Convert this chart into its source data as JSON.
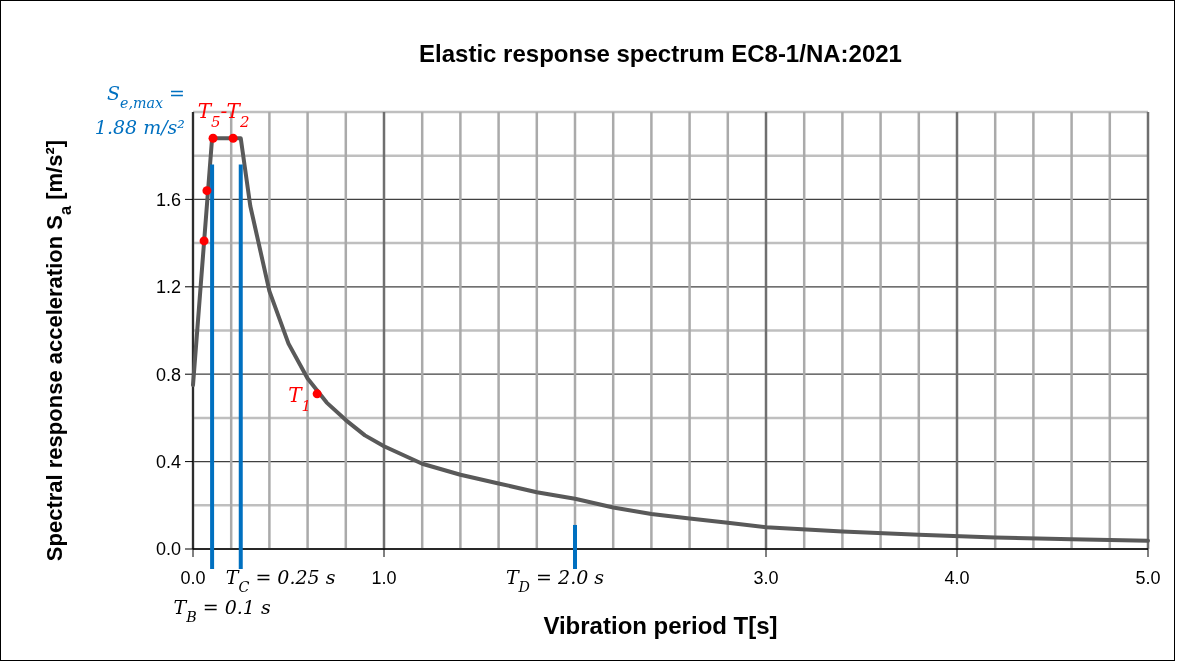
{
  "chart_data": {
    "type": "line",
    "title": "Elastic response spectrum EC8-1/NA:2021",
    "xlabel": "Vibration period T[s]",
    "ylabel": "Spectral response acceleration S$_{a}$ [m/s²]",
    "xlim": [
      0,
      5
    ],
    "ylim": [
      0,
      2
    ],
    "xticks": [
      {
        "value": 0,
        "label": "0.0"
      },
      {
        "value": 0.2,
        "label": null
      },
      {
        "value": 0.4,
        "label": null
      },
      {
        "value": 0.6,
        "label": null
      },
      {
        "value": 0.8,
        "label": null
      },
      {
        "value": 1,
        "label": "1.0"
      },
      {
        "value": 1.2,
        "label": null
      },
      {
        "value": 1.4,
        "label": null
      },
      {
        "value": 1.6,
        "label": null
      },
      {
        "value": 1.8,
        "label": null
      },
      {
        "value": 2,
        "label": null
      },
      {
        "value": 2.2,
        "label": null
      },
      {
        "value": 2.4,
        "label": null
      },
      {
        "value": 2.6,
        "label": null
      },
      {
        "value": 2.8,
        "label": null
      },
      {
        "value": 3,
        "label": "3.0"
      },
      {
        "value": 3.2,
        "label": null
      },
      {
        "value": 3.4,
        "label": null
      },
      {
        "value": 3.6,
        "label": null
      },
      {
        "value": 3.8,
        "label": null
      },
      {
        "value": 4,
        "label": "4.0"
      },
      {
        "value": 4.2,
        "label": null
      },
      {
        "value": 4.4,
        "label": null
      },
      {
        "value": 4.6,
        "label": null
      },
      {
        "value": 4.8,
        "label": null
      },
      {
        "value": 5,
        "label": "5.0"
      }
    ],
    "yticks": [
      {
        "value": 0,
        "label": "0.0"
      },
      {
        "value": 0.2,
        "label": null
      },
      {
        "value": 0.4,
        "label": "0.4"
      },
      {
        "value": 0.6,
        "label": null
      },
      {
        "value": 0.8,
        "label": "0.8"
      },
      {
        "value": 1,
        "label": null
      },
      {
        "value": 1.2,
        "label": "1.2"
      },
      {
        "value": 1.4,
        "label": null
      },
      {
        "value": 1.6,
        "label": "1.6"
      },
      {
        "value": 1.8,
        "label": null
      },
      {
        "value": 2,
        "label": null
      }
    ],
    "grid": true,
    "series": [
      {
        "color": "#595959",
        "x": [
          0,
          0.1,
          0.25,
          0.3,
          0.4,
          0.5,
          0.6,
          0.7,
          0.8,
          0.9,
          1.0,
          1.2,
          1.4,
          1.6,
          1.8,
          2.0,
          2.2,
          2.4,
          2.6,
          2.8,
          3.0,
          3.4,
          3.8,
          4.2,
          4.6,
          5.0
        ],
        "values": [
          0.75,
          1.88,
          1.88,
          1.57,
          1.18,
          0.94,
          0.78,
          0.67,
          0.59,
          0.52,
          0.47,
          0.39,
          0.34,
          0.3,
          0.26,
          0.23,
          0.19,
          0.16,
          0.14,
          0.12,
          0.1,
          0.08,
          0.065,
          0.053,
          0.045,
          0.038
        ]
      },
      {
        "type": "scatter",
        "color": "#ff0000",
        "marker": "circle",
        "x": [
          0.058,
          0.073,
          0.105,
          0.21,
          0.65
        ],
        "values": [
          1.41,
          1.64,
          1.88,
          1.88,
          0.71
        ]
      }
    ],
    "ref_lines": [
      {
        "axis": "x",
        "value": 0.1,
        "label": "T$_{B}$ = 0.1 s",
        "color": "#0070c0"
      },
      {
        "axis": "x",
        "value": 0.25,
        "label": "T$_{C}$ = 0.25 s",
        "color": "#0070c0"
      },
      {
        "axis": "x",
        "value": 2.0,
        "label": "T$_{D}$ = 2.0 s",
        "color": "#0070c0"
      }
    ],
    "annotations": [
      "S$_{e,max}$ =",
      "1.88 m/s²",
      {
        "text": "T$_{5}$-T$_{2}$",
        "x": 0.16,
        "y": 1.88
      },
      {
        "text": "T$_{1}$",
        "x": 0.65,
        "y": 0.71
      }
    ]
  }
}
